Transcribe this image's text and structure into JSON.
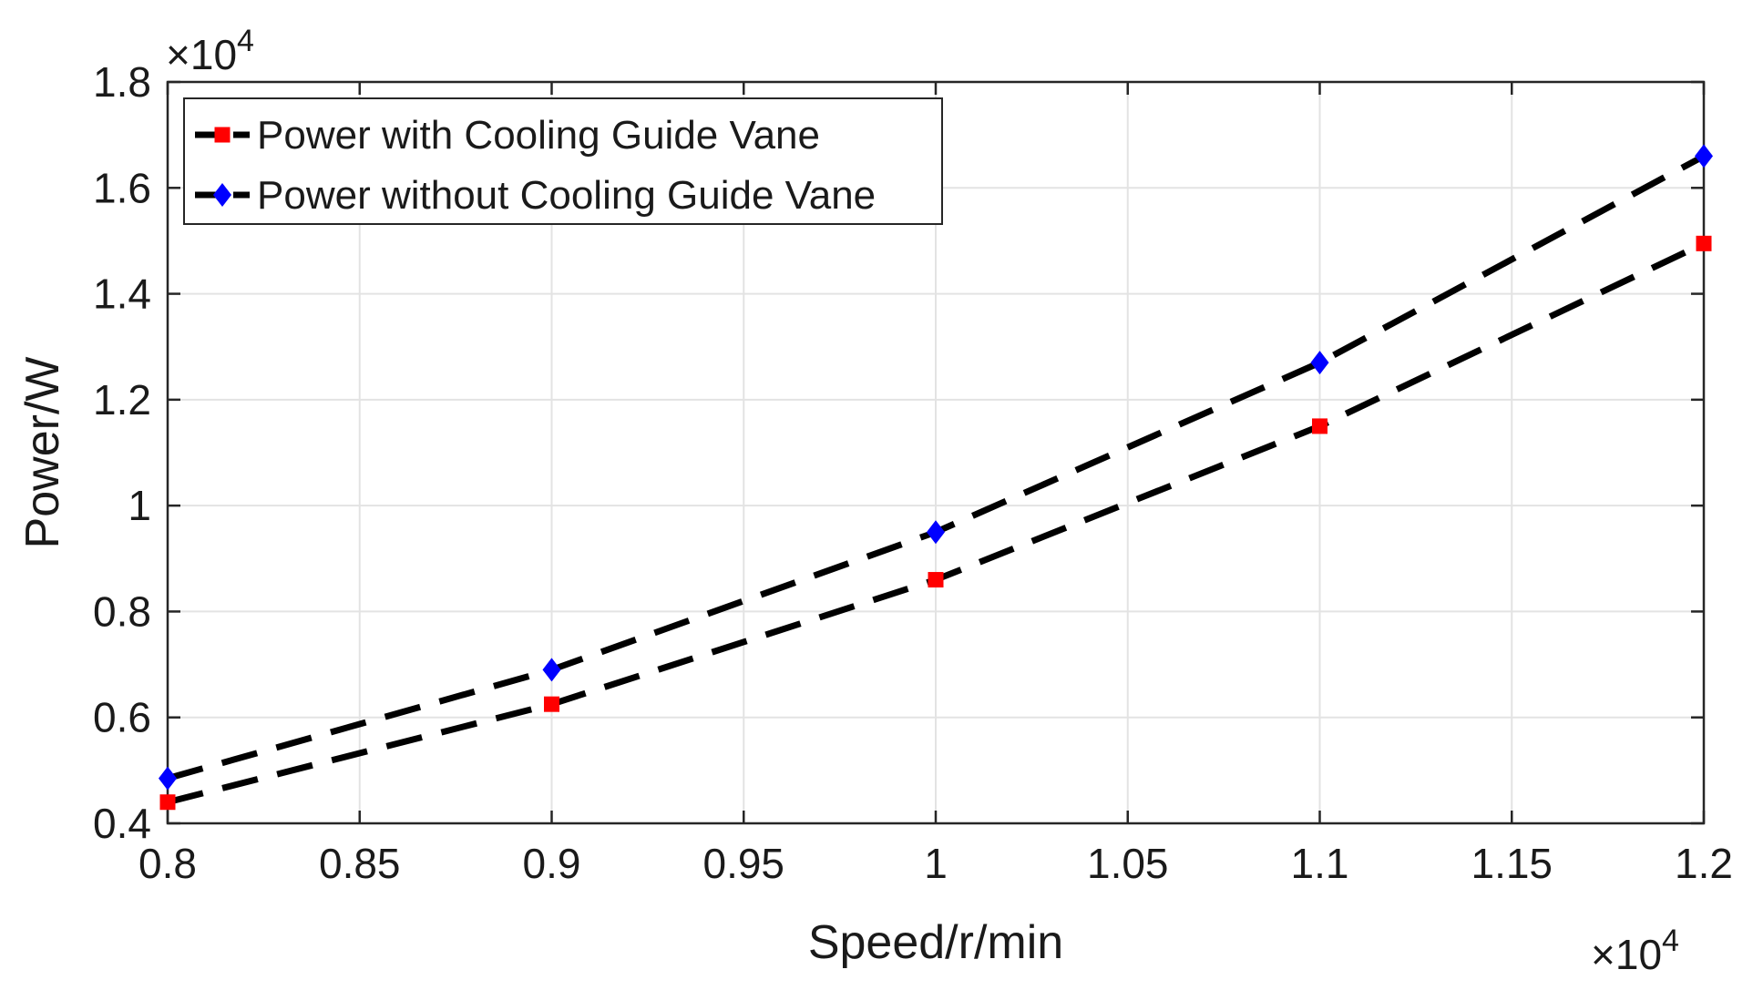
{
  "chart_data": {
    "type": "line",
    "title": "",
    "xlabel": "Speed/r/min",
    "ylabel": "Power/W",
    "x_exponent_label": "×10",
    "x_exponent_power": "4",
    "y_exponent_label": "×10",
    "y_exponent_power": "4",
    "xlim": [
      0.8,
      1.2
    ],
    "ylim": [
      0.4,
      1.8
    ],
    "x_ticks": [
      0.8,
      0.85,
      0.9,
      0.95,
      1.0,
      1.05,
      1.1,
      1.15,
      1.2
    ],
    "x_tick_labels": [
      "0.8",
      "0.85",
      "0.9",
      "0.95",
      "1",
      "1.05",
      "1.1",
      "1.15",
      "1.2"
    ],
    "y_ticks": [
      0.4,
      0.6,
      0.8,
      1.0,
      1.2,
      1.4,
      1.6,
      1.8
    ],
    "y_tick_labels": [
      "0.4",
      "0.6",
      "0.8",
      "1",
      "1.2",
      "1.4",
      "1.6",
      "1.8"
    ],
    "grid": true,
    "legend_position": "top-left",
    "series": [
      {
        "name": "Power with Cooling Guide Vane",
        "x": [
          0.8,
          0.9,
          1.0,
          1.1,
          1.2
        ],
        "values": [
          0.44,
          0.625,
          0.86,
          1.15,
          1.495
        ],
        "line_color": "#000000",
        "line_style": "dashed",
        "marker": "square",
        "marker_color": "#ff0000"
      },
      {
        "name": "Power without Cooling Guide Vane",
        "x": [
          0.8,
          0.9,
          1.0,
          1.1,
          1.2
        ],
        "values": [
          0.485,
          0.69,
          0.95,
          1.27,
          1.66
        ],
        "line_color": "#000000",
        "line_style": "dashed",
        "marker": "diamond",
        "marker_color": "#0000ff"
      }
    ]
  }
}
